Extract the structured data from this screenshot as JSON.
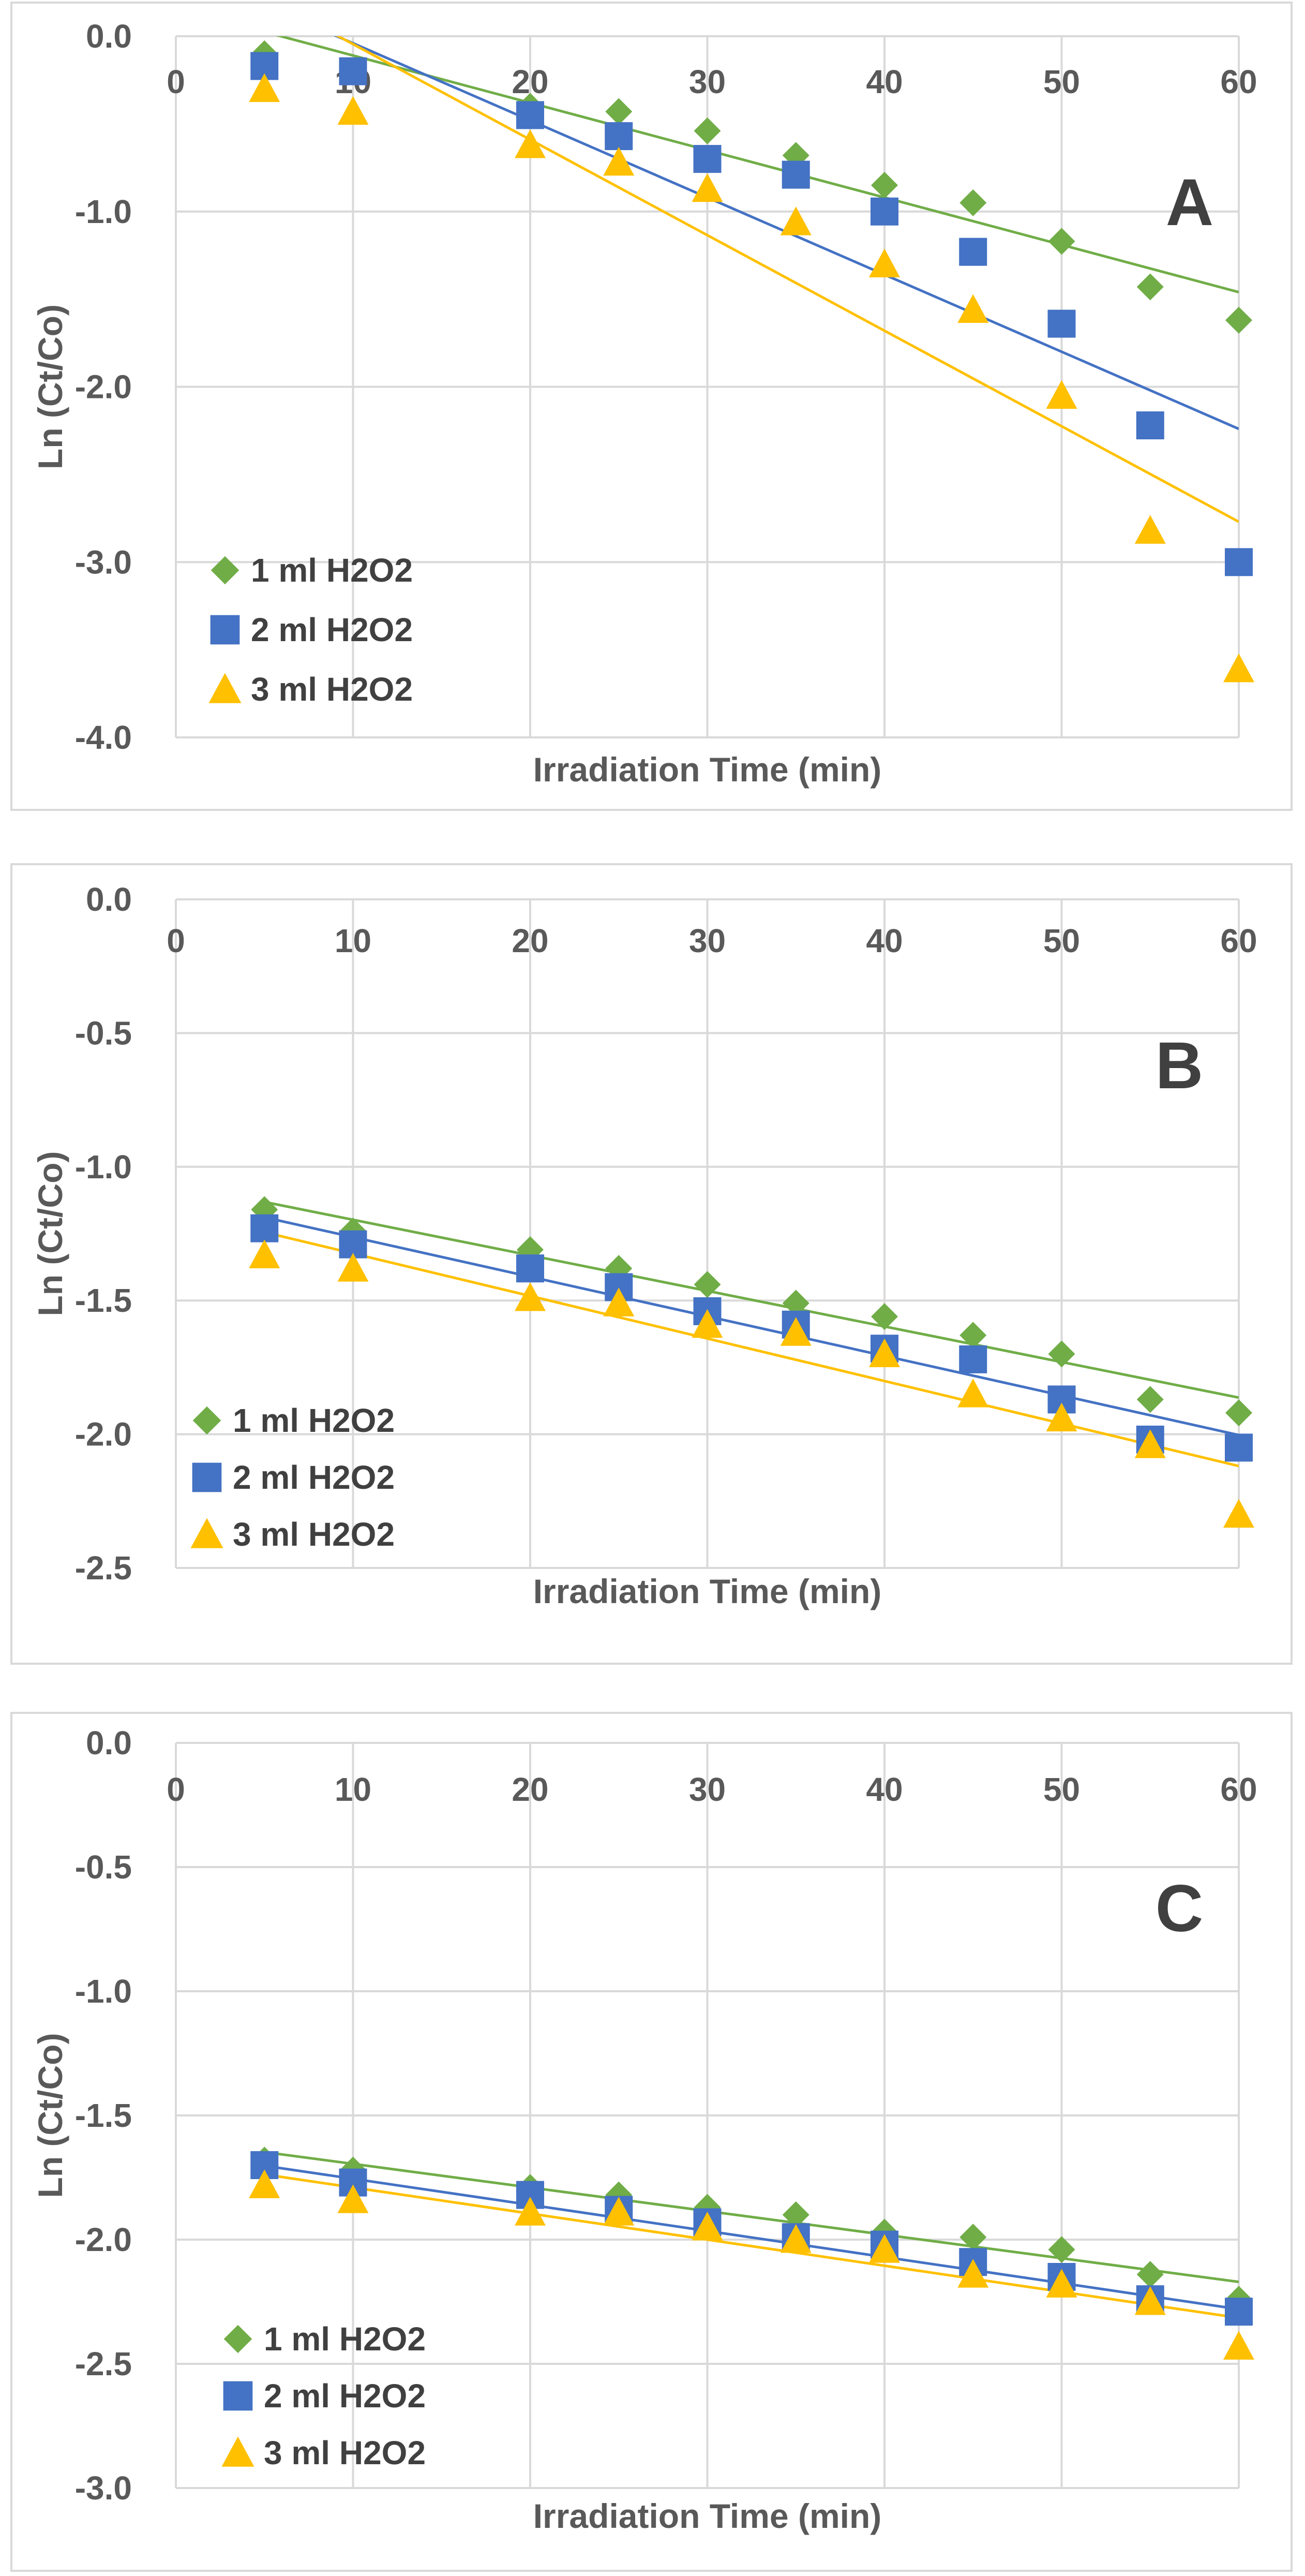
{
  "colors": {
    "series_1": "#70AD47",
    "series_2": "#4472C4",
    "series_3": "#FFC000",
    "grid": "#D9D9D9",
    "text": "#595959",
    "frame": "#D9D9D9"
  },
  "chart_data": [
    {
      "type": "scatter",
      "panel": "A",
      "title": "",
      "xlabel": "Irradiation Time (min)",
      "ylabel": "Ln (Ct/Co)",
      "xlim": [
        0,
        60
      ],
      "ylim": [
        -4,
        0
      ],
      "xticks": [
        0,
        10,
        20,
        30,
        40,
        50,
        60
      ],
      "yticks": [
        0,
        -1,
        -2,
        -3,
        -4
      ],
      "ytick_labels": [
        "0.0",
        "-1.0",
        "-2.0",
        "-3.0",
        "-4.0"
      ],
      "legend_position": "bottom-left",
      "trendlines": true,
      "x": [
        5,
        10,
        20,
        25,
        30,
        35,
        40,
        45,
        50,
        55,
        60
      ],
      "series": [
        {
          "name": "1 ml H2O2",
          "marker": "diamond",
          "color": "#70AD47",
          "values": [
            -0.1,
            -0.2,
            -0.4,
            -0.43,
            -0.54,
            -0.68,
            -0.85,
            -0.95,
            -1.17,
            -1.43,
            -1.62
          ],
          "fit": [
            0.16,
            -0.027
          ]
        },
        {
          "name": "2 ml H2O2",
          "marker": "square",
          "color": "#4472C4",
          "values": [
            -0.17,
            -0.2,
            -0.45,
            -0.57,
            -0.7,
            -0.79,
            -1.0,
            -1.23,
            -1.64,
            -2.22,
            -3.0
          ],
          "fit": [
            0.4,
            -0.044
          ]
        },
        {
          "name": "3 ml H2O2",
          "marker": "triangle",
          "color": "#FFC000",
          "values": [
            -0.3,
            -0.43,
            -0.62,
            -0.72,
            -0.87,
            -1.06,
            -1.3,
            -1.56,
            -2.05,
            -2.82,
            -3.61
          ],
          "fit": [
            0.5,
            -0.0545
          ]
        }
      ]
    },
    {
      "type": "scatter",
      "panel": "B",
      "title": "",
      "xlabel": "Irradiation Time (min)",
      "ylabel": "Ln (Ct/Co)",
      "xlim": [
        0,
        60
      ],
      "ylim": [
        -2.5,
        0
      ],
      "xticks": [
        0,
        10,
        20,
        30,
        40,
        50,
        60
      ],
      "yticks": [
        0,
        -0.5,
        -1,
        -1.5,
        -2,
        -2.5
      ],
      "ytick_labels": [
        "0.0",
        "-0.5",
        "-1.0",
        "-1.5",
        "-2.0",
        "-2.5"
      ],
      "legend_position": "bottom-left",
      "trendlines": true,
      "x": [
        5,
        10,
        20,
        25,
        30,
        35,
        40,
        45,
        50,
        55,
        60
      ],
      "series": [
        {
          "name": "1 ml H2O2",
          "marker": "diamond",
          "color": "#70AD47",
          "values": [
            -1.16,
            -1.24,
            -1.31,
            -1.38,
            -1.44,
            -1.51,
            -1.56,
            -1.63,
            -1.7,
            -1.87,
            -1.92
          ],
          "fit": [
            -1.065,
            -0.0133
          ]
        },
        {
          "name": "2 ml H2O2",
          "marker": "square",
          "color": "#4472C4",
          "values": [
            -1.23,
            -1.29,
            -1.38,
            -1.45,
            -1.54,
            -1.59,
            -1.68,
            -1.72,
            -1.87,
            -2.02,
            -2.05
          ],
          "fit": [
            -1.115,
            -0.0148
          ]
        },
        {
          "name": "3 ml H2O2",
          "marker": "triangle",
          "color": "#FFC000",
          "values": [
            -1.33,
            -1.38,
            -1.49,
            -1.51,
            -1.59,
            -1.62,
            -1.7,
            -1.85,
            -1.94,
            -2.04,
            -2.3
          ],
          "fit": [
            -1.165,
            -0.0159
          ]
        }
      ]
    },
    {
      "type": "scatter",
      "panel": "C",
      "title": "",
      "xlabel": "Irradiation Time (min)",
      "ylabel": "Ln (Ct/Co)",
      "xlim": [
        0,
        60
      ],
      "ylim": [
        -3,
        0
      ],
      "xticks": [
        0,
        10,
        20,
        30,
        40,
        50,
        60
      ],
      "yticks": [
        0,
        -0.5,
        -1,
        -1.5,
        -2,
        -2.5,
        -3
      ],
      "ytick_labels": [
        "0.0",
        "-0.5",
        "-1.0",
        "-1.5",
        "-2.0",
        "-2.5",
        "-3.0"
      ],
      "legend_position": "bottom-left",
      "trendlines": true,
      "x": [
        5,
        10,
        20,
        25,
        30,
        35,
        40,
        45,
        50,
        55,
        60
      ],
      "series": [
        {
          "name": "1 ml H2O2",
          "marker": "diamond",
          "color": "#70AD47",
          "values": [
            -1.68,
            -1.72,
            -1.79,
            -1.82,
            -1.87,
            -1.9,
            -1.97,
            -1.99,
            -2.04,
            -2.14,
            -2.24
          ],
          "fit": [
            -1.6,
            -0.0095
          ]
        },
        {
          "name": "2 ml H2O2",
          "marker": "square",
          "color": "#4472C4",
          "values": [
            -1.7,
            -1.77,
            -1.82,
            -1.88,
            -1.93,
            -1.99,
            -2.02,
            -2.09,
            -2.15,
            -2.24,
            -2.29
          ],
          "fit": [
            -1.65,
            -0.0105
          ]
        },
        {
          "name": "3 ml H2O2",
          "marker": "triangle",
          "color": "#FFC000",
          "values": [
            -1.78,
            -1.84,
            -1.89,
            -1.89,
            -1.95,
            -2.0,
            -2.04,
            -2.14,
            -2.18,
            -2.25,
            -2.43
          ],
          "fit": [
            -1.685,
            -0.0105
          ]
        }
      ]
    }
  ]
}
